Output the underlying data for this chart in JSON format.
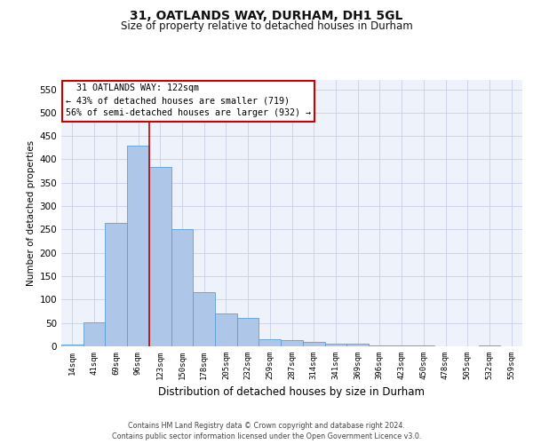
{
  "title1": "31, OATLANDS WAY, DURHAM, DH1 5GL",
  "title2": "Size of property relative to detached houses in Durham",
  "xlabel": "Distribution of detached houses by size in Durham",
  "ylabel": "Number of detached properties",
  "bar_labels": [
    "14sqm",
    "41sqm",
    "69sqm",
    "96sqm",
    "123sqm",
    "150sqm",
    "178sqm",
    "205sqm",
    "232sqm",
    "259sqm",
    "287sqm",
    "314sqm",
    "341sqm",
    "369sqm",
    "396sqm",
    "423sqm",
    "450sqm",
    "478sqm",
    "505sqm",
    "532sqm",
    "559sqm"
  ],
  "bar_values": [
    3,
    52,
    265,
    430,
    383,
    250,
    115,
    71,
    60,
    15,
    13,
    10,
    6,
    5,
    2,
    1,
    1,
    0,
    0,
    1,
    0
  ],
  "bar_color": "#aec6e8",
  "bar_edge_color": "#5a9fd4",
  "ylim": [
    0,
    570
  ],
  "yticks": [
    0,
    50,
    100,
    150,
    200,
    250,
    300,
    350,
    400,
    450,
    500,
    550
  ],
  "vline_color": "#cc0000",
  "annotation_text": "  31 OATLANDS WAY: 122sqm\n← 43% of detached houses are smaller (719)\n56% of semi-detached houses are larger (932) →",
  "annotation_box_color": "#ffffff",
  "annotation_box_edge": "#cc0000",
  "footer1": "Contains HM Land Registry data © Crown copyright and database right 2024.",
  "footer2": "Contains public sector information licensed under the Open Government Licence v3.0.",
  "background_color": "#ffffff",
  "plot_bg_color": "#edf2fb",
  "grid_color": "#c8d0e8"
}
